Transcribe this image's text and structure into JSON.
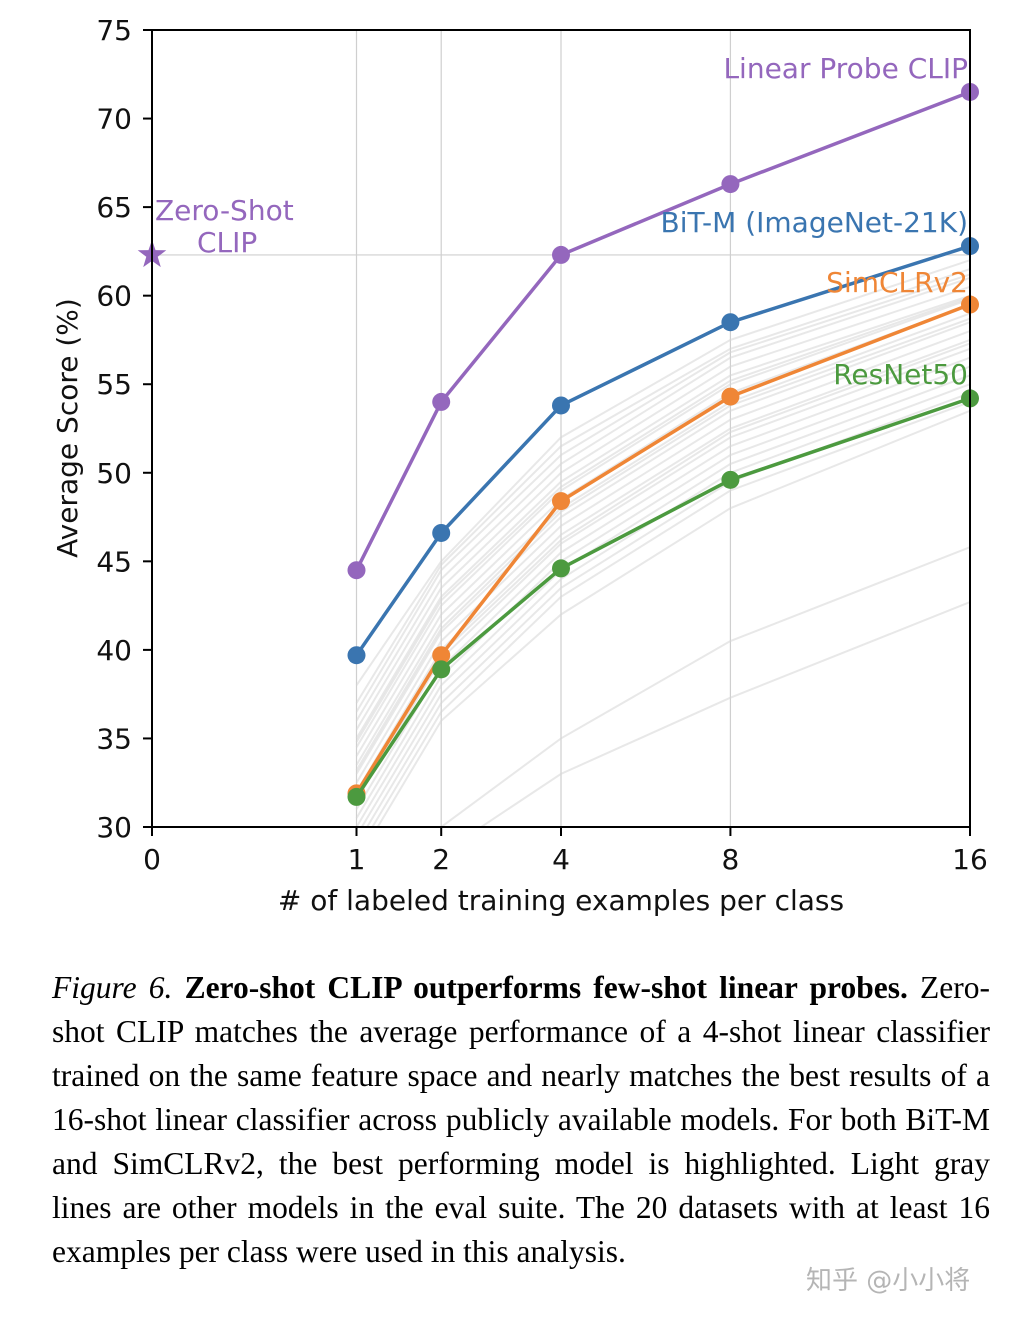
{
  "chart_data": {
    "type": "line",
    "xlabel": "# of labeled training examples per class",
    "ylabel": "Average Score (%)",
    "xticks": [
      0,
      1,
      2,
      4,
      8,
      16
    ],
    "xlim": [
      0,
      16
    ],
    "ylim": [
      30,
      75
    ],
    "yticks": [
      30,
      35,
      40,
      45,
      50,
      55,
      60,
      65,
      70,
      75
    ],
    "x_scale": "square-root",
    "grid": "vertical lines at x ticks; horizontal reference line at zero-shot score",
    "x": [
      1,
      2,
      4,
      8,
      16
    ],
    "series": [
      {
        "name": "Linear Probe CLIP",
        "color": "#9467bd",
        "values": [
          44.5,
          54.0,
          62.3,
          66.3,
          71.5
        ]
      },
      {
        "name": "BiT-M (ImageNet-21K)",
        "color": "#3a75b0",
        "values": [
          39.7,
          46.6,
          53.8,
          58.5,
          62.8
        ]
      },
      {
        "name": "SimCLRv2",
        "color": "#ef8636",
        "values": [
          31.9,
          39.7,
          48.4,
          54.3,
          59.5
        ]
      },
      {
        "name": "ResNet50",
        "color": "#4c9a3f",
        "values": [
          31.7,
          38.9,
          44.6,
          49.6,
          54.2
        ]
      }
    ],
    "zero_shot": {
      "label_line1": "Zero-Shot",
      "label_line2": "CLIP",
      "x": 0,
      "y": 62.3,
      "color": "#9467bd"
    },
    "gray_lines": [
      [
        37.0,
        44.8,
        51.5,
        57.0,
        61.5
      ],
      [
        36.0,
        44.0,
        50.5,
        56.5,
        61.0
      ],
      [
        35.5,
        43.5,
        50.0,
        56.0,
        60.5
      ],
      [
        35.0,
        43.0,
        49.5,
        55.5,
        60.0
      ],
      [
        34.5,
        42.5,
        49.0,
        55.0,
        59.8
      ],
      [
        34.0,
        42.0,
        48.5,
        54.5,
        59.5
      ],
      [
        33.5,
        41.5,
        48.0,
        54.0,
        59.0
      ],
      [
        33.0,
        41.0,
        47.5,
        53.5,
        58.5
      ],
      [
        32.5,
        40.5,
        47.0,
        53.0,
        58.0
      ],
      [
        32.0,
        40.0,
        46.5,
        52.5,
        57.5
      ],
      [
        31.5,
        39.5,
        46.0,
        52.0,
        57.0
      ],
      [
        31.0,
        39.0,
        45.5,
        51.5,
        56.5
      ],
      [
        30.5,
        38.5,
        45.0,
        51.0,
        56.0
      ],
      [
        30.0,
        38.0,
        44.5,
        50.5,
        55.5
      ],
      [
        29.5,
        37.5,
        44.0,
        50.0,
        55.0
      ],
      [
        38.0,
        45.0,
        52.0,
        57.5,
        62.0
      ],
      [
        36.5,
        44.5,
        51.0,
        56.8,
        61.2
      ],
      [
        34.8,
        42.8,
        49.2,
        55.2,
        59.9
      ],
      [
        33.2,
        41.2,
        47.8,
        53.8,
        58.7
      ],
      [
        31.8,
        39.8,
        46.2,
        52.3,
        57.3
      ],
      [
        29.0,
        37.0,
        43.5,
        49.5,
        54.5
      ],
      [
        28.5,
        36.5,
        43.0,
        49.0,
        54.0
      ],
      [
        24.0,
        30.0,
        35.0,
        40.5,
        45.8
      ],
      [
        22.0,
        28.5,
        33.0,
        37.3,
        42.7
      ],
      [
        28.0,
        36.0,
        42.0,
        48.0,
        53.5
      ]
    ]
  },
  "caption": {
    "figure_label": "Figure 6.",
    "title": "Zero-shot CLIP outperforms few-shot linear probes.",
    "body": "Zero-shot CLIP matches the average performance of a 4-shot linear classifier trained on the same feature space and nearly matches the best results of a 16-shot linear classifier across publicly available models.  For both BiT-M and SimCLRv2, the best performing model is highlighted. Light gray lines are other models in the eval suite.  The 20 datasets with at least 16 examples per class were used in this analysis."
  },
  "watermark": "知乎 @小小将"
}
